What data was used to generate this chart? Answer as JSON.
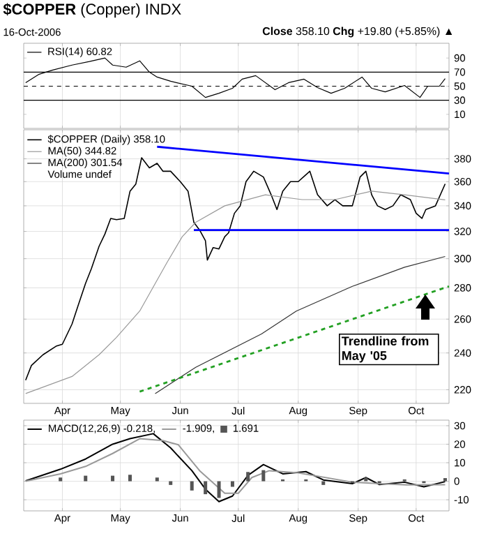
{
  "chart_data": [
    {
      "type": "line",
      "title": "**$COPPER** (Copper) INDX",
      "subtitle": "16-Oct-2006",
      "annotations": [
        "**Close** 358.10  **Chg** +19.80 (+5.85%) ▲"
      ],
      "xlim": [
        "2006-03-12",
        "2006-10-18"
      ],
      "xticks": [
        {
          "value": "2006-04-01",
          "label": null
        },
        {
          "value": "2006-05-01",
          "label": null
        },
        {
          "value": "2006-06-01",
          "label": null
        },
        {
          "value": "2006-07-01",
          "label": null
        },
        {
          "value": "2006-08-01",
          "label": null
        },
        {
          "value": "2006-09-01",
          "label": null
        },
        {
          "value": "2006-10-01",
          "label": null
        }
      ],
      "ylim": [
        -10,
        111
      ],
      "yticks": [
        10,
        30,
        50,
        70,
        90
      ],
      "grid": "x",
      "tick_labels": "y",
      "legend": "top left",
      "ref_lines": [
        {
          "axis": "y",
          "value": 70
        },
        {
          "axis": "y",
          "value": 30
        },
        {
          "axis": "y",
          "value": 50,
          "line_style": "dashed"
        }
      ],
      "series": [
        {
          "name": "RSI(14) 60.82",
          "color": "#000000",
          "x": [
            "2006-03-13",
            "2006-03-20",
            "2006-03-27",
            "2006-04-06",
            "2006-04-15",
            "2006-04-23",
            "2006-04-27",
            "2006-05-04",
            "2006-05-11",
            "2006-05-16",
            "2006-05-20",
            "2006-05-27",
            "2006-06-07",
            "2006-06-14",
            "2006-06-21",
            "2006-06-28",
            "2006-07-03",
            "2006-07-10",
            "2006-07-20",
            "2006-07-27",
            "2006-08-04",
            "2006-08-11",
            "2006-08-18",
            "2006-08-25",
            "2006-09-03",
            "2006-09-08",
            "2006-09-15",
            "2006-09-25",
            "2006-10-03",
            "2006-10-07",
            "2006-10-13",
            "2006-10-16"
          ],
          "values": [
            55,
            67,
            73,
            80,
            85,
            90,
            80,
            77,
            86,
            70,
            63,
            57,
            50,
            34,
            40,
            47,
            60,
            65,
            45,
            55,
            60,
            48,
            40,
            47,
            63,
            47,
            42,
            51,
            34,
            50,
            50,
            60.82
          ]
        }
      ]
    },
    {
      "type": "line",
      "log": "y",
      "xlim": [
        "2006-03-12",
        "2006-10-18"
      ],
      "xticks": [
        {
          "value": "2006-04-01",
          "label": "Apr"
        },
        {
          "value": "2006-05-01",
          "label": "May"
        },
        {
          "value": "2006-06-01",
          "label": "Jun"
        },
        {
          "value": "2006-07-01",
          "label": "Jul"
        },
        {
          "value": "2006-08-01",
          "label": "Aug"
        },
        {
          "value": "2006-09-01",
          "label": "Sep"
        },
        {
          "value": "2006-10-01",
          "label": "Oct"
        }
      ],
      "ylim": [
        213,
        407
      ],
      "yticks": [
        220,
        240,
        260,
        280,
        300,
        320,
        340,
        360,
        380
      ],
      "grid": true,
      "legend": "top left",
      "annotations": [
        "Volume undef",
        "Trendline from May '05"
      ],
      "series": [
        {
          "name": "$COPPER (Daily) 358.10",
          "color": "#000000",
          "x": [
            "2006-03-13",
            "2006-03-16",
            "2006-03-22",
            "2006-03-29",
            "2006-04-01",
            "2006-04-06",
            "2006-04-09",
            "2006-04-13",
            "2006-04-16",
            "2006-04-20",
            "2006-04-23",
            "2006-04-26",
            "2006-04-29",
            "2006-05-03",
            "2006-05-06",
            "2006-05-09",
            "2006-05-12",
            "2006-05-16",
            "2006-05-20",
            "2006-05-23",
            "2006-05-27",
            "2006-06-01",
            "2006-06-05",
            "2006-06-08",
            "2006-06-11",
            "2006-06-14",
            "2006-06-15",
            "2006-06-18",
            "2006-06-21",
            "2006-06-24",
            "2006-06-26",
            "2006-06-29",
            "2006-07-02",
            "2006-07-05",
            "2006-07-09",
            "2006-07-14",
            "2006-07-18",
            "2006-07-21",
            "2006-07-24",
            "2006-07-28",
            "2006-08-01",
            "2006-08-07",
            "2006-08-11",
            "2006-08-16",
            "2006-08-20",
            "2006-08-24",
            "2006-08-29",
            "2006-09-02",
            "2006-09-05",
            "2006-09-08",
            "2006-09-11",
            "2006-09-15",
            "2006-09-19",
            "2006-09-23",
            "2006-09-28",
            "2006-10-01",
            "2006-10-04",
            "2006-10-06",
            "2006-10-11",
            "2006-10-16"
          ],
          "values": [
            225,
            233,
            239,
            244,
            245,
            257,
            268,
            283,
            293,
            309,
            318,
            330,
            329,
            330,
            352,
            358,
            381,
            372,
            376,
            369,
            369,
            360,
            352,
            327,
            321,
            313,
            299,
            308,
            307,
            316,
            319,
            334,
            340,
            360,
            369,
            364,
            349,
            337,
            352,
            360,
            360,
            369,
            349,
            340,
            345,
            340,
            340,
            364,
            369,
            349,
            340,
            337,
            340,
            349,
            345,
            334,
            330,
            337,
            340,
            358.1
          ]
        },
        {
          "name": "MA(50) 344.82",
          "color": "#999999",
          "x": [
            "2006-03-13",
            "2006-04-06",
            "2006-04-20",
            "2006-04-29",
            "2006-05-11",
            "2006-05-25",
            "2006-06-02",
            "2006-06-09",
            "2006-06-24",
            "2006-07-15",
            "2006-08-03",
            "2006-08-20",
            "2006-09-08",
            "2006-09-25",
            "2006-10-16"
          ],
          "values": [
            218,
            227,
            239,
            249,
            265,
            297,
            316,
            327,
            340,
            349,
            345,
            345,
            352,
            349,
            344.82
          ]
        },
        {
          "name": "MA(200) 301.54",
          "color": "#333333",
          "x": [
            "2006-05-19",
            "2006-06-09",
            "2006-07-13",
            "2006-07-31",
            "2006-08-29",
            "2006-09-25",
            "2006-10-16"
          ],
          "values": [
            218,
            232,
            251,
            265,
            281,
            294,
            301.54
          ]
        },
        {
          "color": "#0000ff",
          "x": [
            "2006-05-20",
            "2006-10-18"
          ],
          "values": [
            391,
            367
          ]
        },
        {
          "color": "#0000ff",
          "x": [
            "2006-06-08",
            "2006-10-18"
          ],
          "values": [
            321,
            321
          ]
        },
        {
          "color": "#22a022",
          "line_style": "dashed",
          "x": [
            "2006-05-11",
            "2006-10-18"
          ],
          "values": [
            219,
            281
          ]
        }
      ]
    },
    {
      "type": "line",
      "xlim": [
        "2006-03-12",
        "2006-10-18"
      ],
      "xticks": [
        {
          "value": "2006-04-01",
          "label": "Apr"
        },
        {
          "value": "2006-05-01",
          "label": "May"
        },
        {
          "value": "2006-06-01",
          "label": "Jun"
        },
        {
          "value": "2006-07-01",
          "label": "Jul"
        },
        {
          "value": "2006-08-01",
          "label": "Aug"
        },
        {
          "value": "2006-09-01",
          "label": "Sep"
        },
        {
          "value": "2006-10-01",
          "label": "Oct"
        }
      ],
      "ylim": [
        -16,
        33
      ],
      "yticks": [
        -10,
        0,
        10,
        20,
        30
      ],
      "grid": true,
      "legend": "top left",
      "series": [
        {
          "name": "MACD(12,26,9) -0.218,",
          "color": "#000000",
          "x": [
            "2006-03-13",
            "2006-03-31",
            "2006-04-13",
            "2006-04-27",
            "2006-05-06",
            "2006-05-18",
            "2006-05-27",
            "2006-06-07",
            "2006-06-14",
            "2006-06-21",
            "2006-06-28",
            "2006-07-06",
            "2006-07-14",
            "2006-07-24",
            "2006-08-05",
            "2006-08-14",
            "2006-08-29",
            "2006-09-05",
            "2006-09-12",
            "2006-09-25",
            "2006-10-05",
            "2006-10-16"
          ],
          "values": [
            0.2,
            6.5,
            12,
            20,
            23,
            25.7,
            18,
            5.7,
            -4.3,
            -11,
            -8,
            3.2,
            9,
            4,
            5.2,
            0.7,
            -1.3,
            2,
            -1.8,
            -0.5,
            -3,
            -0.218
          ]
        },
        {
          "name": "-1.909,",
          "color": "#999999",
          "x": [
            "2006-03-13",
            "2006-03-31",
            "2006-04-13",
            "2006-04-27",
            "2006-05-11",
            "2006-05-23",
            "2006-05-31",
            "2006-06-11",
            "2006-06-24",
            "2006-07-01",
            "2006-07-08",
            "2006-07-17",
            "2006-08-01",
            "2006-08-15",
            "2006-08-29",
            "2006-09-12",
            "2006-09-26",
            "2006-10-16"
          ],
          "values": [
            0,
            4,
            8,
            15,
            23,
            22,
            19.7,
            5.7,
            -6.5,
            -6.5,
            2,
            5.7,
            4.5,
            2,
            -0.5,
            -1.3,
            -2,
            -1.909
          ]
        },
        {
          "name": "1.691",
          "type": "bar",
          "color": "#555555",
          "x": [
            "2006-03-13",
            "2006-03-31",
            "2006-04-13",
            "2006-04-27",
            "2006-05-06",
            "2006-05-20",
            "2006-05-27",
            "2006-06-07",
            "2006-06-14",
            "2006-06-21",
            "2006-06-28",
            "2006-07-06",
            "2006-07-14",
            "2006-07-24",
            "2006-08-05",
            "2006-08-14",
            "2006-08-29",
            "2006-09-05",
            "2006-09-12",
            "2006-09-25",
            "2006-10-05",
            "2006-10-16"
          ],
          "values": [
            0,
            2,
            3,
            3,
            3.5,
            2,
            -2,
            -5,
            -7,
            -9,
            -3,
            5,
            6,
            1,
            1,
            -2,
            -1,
            2,
            -1,
            1,
            -1,
            1.691
          ]
        }
      ]
    }
  ]
}
